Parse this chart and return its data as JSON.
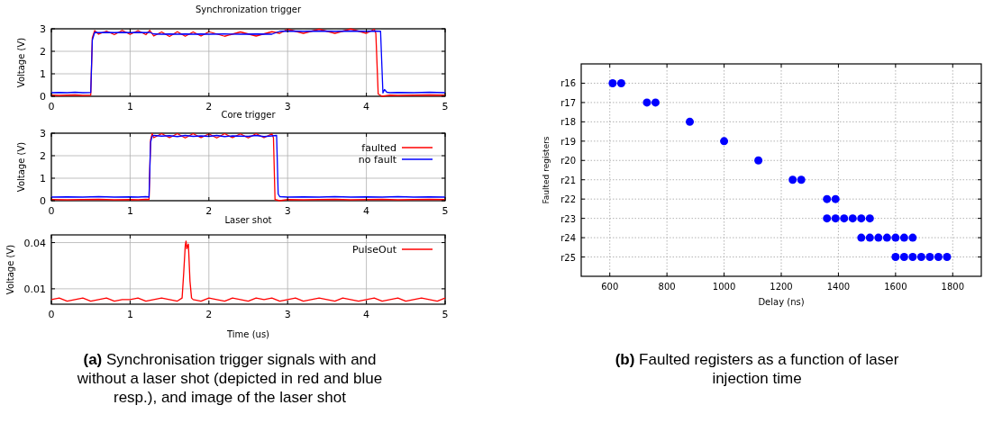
{
  "chart_data": [
    {
      "type": "line",
      "title": "Synchronization trigger",
      "ylabel": "Voltage (V)",
      "xlim": [
        0,
        5
      ],
      "xticks": [
        0,
        1,
        2,
        3,
        4,
        5
      ],
      "ylim": [
        0,
        3
      ],
      "yticks": [
        0,
        1,
        2,
        3
      ],
      "grid": true,
      "series": [
        {
          "color": "#ff0000",
          "x": [
            0,
            0.1,
            0.2,
            0.3,
            0.4,
            0.5,
            0.52,
            0.55,
            0.6,
            0.7,
            0.8,
            0.9,
            1.0,
            1.1,
            1.2,
            1.25,
            1.3,
            1.4,
            1.5,
            1.6,
            1.7,
            1.8,
            1.9,
            2.0,
            2.2,
            2.4,
            2.6,
            2.8,
            2.9,
            3.0,
            3.2,
            3.4,
            3.6,
            3.8,
            4.0,
            4.1,
            4.12,
            4.15,
            4.2,
            4.3,
            4.4,
            4.6,
            4.8,
            5.0
          ],
          "values": [
            0.05,
            0.04,
            0.05,
            0.06,
            0.04,
            0.05,
            2.6,
            2.92,
            2.76,
            2.9,
            2.74,
            2.93,
            2.75,
            2.92,
            2.74,
            2.93,
            2.68,
            2.86,
            2.66,
            2.87,
            2.67,
            2.86,
            2.68,
            2.87,
            2.67,
            2.86,
            2.68,
            2.87,
            2.8,
            2.98,
            2.8,
            2.98,
            2.8,
            2.99,
            2.8,
            2.98,
            2.8,
            0.1,
            0.0,
            0.05,
            0.04,
            0.05,
            0.06,
            0.05
          ]
        },
        {
          "color": "#0000ff",
          "x": [
            0,
            0.1,
            0.2,
            0.3,
            0.4,
            0.5,
            0.52,
            0.55,
            0.6,
            0.7,
            0.8,
            0.9,
            1.0,
            1.1,
            1.2,
            1.25,
            1.3,
            1.4,
            1.5,
            1.6,
            1.7,
            1.8,
            1.9,
            2.0,
            2.2,
            2.4,
            2.6,
            2.8,
            2.9,
            3.0,
            3.2,
            3.4,
            3.6,
            3.8,
            4.0,
            4.1,
            4.18,
            4.21,
            4.23,
            4.26,
            4.3,
            4.4,
            4.6,
            4.8,
            5.0
          ],
          "values": [
            0.16,
            0.17,
            0.16,
            0.18,
            0.16,
            0.17,
            2.5,
            2.84,
            2.83,
            2.84,
            2.83,
            2.84,
            2.83,
            2.84,
            2.83,
            2.84,
            2.77,
            2.76,
            2.77,
            2.76,
            2.77,
            2.76,
            2.77,
            2.76,
            2.77,
            2.76,
            2.77,
            2.76,
            2.89,
            2.9,
            2.89,
            2.9,
            2.89,
            2.9,
            2.89,
            2.9,
            2.89,
            0.15,
            0.3,
            0.18,
            0.16,
            0.17,
            0.16,
            0.18,
            0.16
          ]
        }
      ]
    },
    {
      "type": "line",
      "title": "Core trigger",
      "ylabel": "Voltage (V)",
      "xlim": [
        0,
        5
      ],
      "xticks": [
        0,
        1,
        2,
        3,
        4,
        5
      ],
      "ylim": [
        0,
        3
      ],
      "yticks": [
        0,
        1,
        2,
        3
      ],
      "grid": true,
      "legend": "top right",
      "series": [
        {
          "name": "faulted",
          "color": "#ff0000",
          "x": [
            0,
            0.2,
            0.4,
            0.6,
            0.8,
            1.0,
            1.1,
            1.2,
            1.24,
            1.26,
            1.28,
            1.3,
            1.4,
            1.5,
            1.6,
            1.7,
            1.8,
            1.9,
            2.0,
            2.1,
            2.2,
            2.3,
            2.4,
            2.5,
            2.6,
            2.7,
            2.8,
            2.82,
            2.84,
            2.9,
            3.0,
            3.2,
            3.4,
            3.6,
            3.8,
            4.0,
            4.2,
            4.4,
            4.6,
            4.8,
            5.0
          ],
          "values": [
            0.05,
            0.04,
            0.05,
            0.06,
            0.04,
            0.05,
            0.04,
            0.06,
            0.05,
            2.7,
            2.98,
            2.8,
            2.98,
            2.8,
            2.98,
            2.79,
            2.98,
            2.8,
            2.97,
            2.79,
            2.98,
            2.8,
            2.97,
            2.79,
            2.98,
            2.8,
            2.97,
            2.8,
            0.05,
            0.0,
            0.05,
            0.04,
            0.05,
            0.06,
            0.04,
            0.05,
            0.06,
            0.04,
            0.05,
            0.06,
            0.05
          ]
        },
        {
          "name": "no fault",
          "color": "#0000ff",
          "x": [
            0,
            0.2,
            0.4,
            0.6,
            0.8,
            1.0,
            1.1,
            1.2,
            1.24,
            1.26,
            1.28,
            1.3,
            1.4,
            1.5,
            1.6,
            1.7,
            1.8,
            1.9,
            2.0,
            2.1,
            2.2,
            2.3,
            2.4,
            2.5,
            2.6,
            2.7,
            2.8,
            2.86,
            2.88,
            2.9,
            3.0,
            3.2,
            3.4,
            3.6,
            3.8,
            4.0,
            4.2,
            4.4,
            4.6,
            4.8,
            5.0
          ],
          "values": [
            0.16,
            0.17,
            0.16,
            0.18,
            0.16,
            0.17,
            0.16,
            0.18,
            0.16,
            2.6,
            2.88,
            2.9,
            2.87,
            2.89,
            2.85,
            2.9,
            2.86,
            2.88,
            2.86,
            2.9,
            2.85,
            2.88,
            2.87,
            2.86,
            2.9,
            2.85,
            2.88,
            2.9,
            0.3,
            0.18,
            0.16,
            0.17,
            0.16,
            0.18,
            0.16,
            0.17,
            0.16,
            0.18,
            0.16,
            0.17,
            0.16
          ]
        }
      ]
    },
    {
      "type": "line",
      "title": "Laser shot",
      "xlabel": "Time (us)",
      "ylabel": "Voltage (V)",
      "xlim": [
        0,
        5
      ],
      "xticks": [
        0,
        1,
        2,
        3,
        4,
        5
      ],
      "ylim": [
        0,
        0.045
      ],
      "yticks": [
        0.01,
        0.04
      ],
      "grid": true,
      "legend": "top right",
      "annotations": [
        "(a) Synchronisation trigger signals with and without a laser shot (depicted in red and blue resp.), and image of the laser shot"
      ],
      "series": [
        {
          "name": "PulseOut",
          "color": "#ff0000",
          "x": [
            0,
            0.1,
            0.2,
            0.3,
            0.4,
            0.5,
            0.6,
            0.7,
            0.8,
            0.9,
            1.0,
            1.1,
            1.2,
            1.3,
            1.4,
            1.5,
            1.6,
            1.66,
            1.68,
            1.7,
            1.71,
            1.72,
            1.73,
            1.74,
            1.76,
            1.78,
            1.8,
            1.9,
            2.0,
            2.1,
            2.2,
            2.3,
            2.4,
            2.5,
            2.6,
            2.7,
            2.8,
            2.9,
            3.0,
            3.1,
            3.2,
            3.3,
            3.4,
            3.5,
            3.6,
            3.7,
            3.8,
            3.9,
            4.0,
            4.1,
            4.2,
            4.3,
            4.4,
            4.5,
            4.6,
            4.7,
            4.8,
            4.9,
            5.0
          ],
          "values": [
            0.003,
            0.004,
            0.002,
            0.003,
            0.004,
            0.002,
            0.003,
            0.004,
            0.002,
            0.003,
            0.003,
            0.004,
            0.002,
            0.003,
            0.004,
            0.003,
            0.002,
            0.004,
            0.02,
            0.038,
            0.041,
            0.036,
            0.038,
            0.039,
            0.015,
            0.004,
            0.003,
            0.002,
            0.004,
            0.003,
            0.002,
            0.004,
            0.003,
            0.002,
            0.004,
            0.003,
            0.004,
            0.002,
            0.003,
            0.004,
            0.002,
            0.003,
            0.004,
            0.003,
            0.002,
            0.004,
            0.003,
            0.002,
            0.003,
            0.004,
            0.002,
            0.003,
            0.004,
            0.002,
            0.003,
            0.004,
            0.003,
            0.002,
            0.004
          ]
        }
      ]
    },
    {
      "type": "scatter",
      "orientation": "horizontal",
      "xlabel": "Delay (ns)",
      "ylabel": "Faulted registers",
      "categories": [
        "r16",
        "r17",
        "r18",
        "r19",
        "r20",
        "r21",
        "r22",
        "r23",
        "r24",
        "r25"
      ],
      "xlim": [
        500,
        1900
      ],
      "xticks": [
        600,
        800,
        1000,
        1200,
        1400,
        1600,
        1800
      ],
      "grid": true,
      "marker": "circle",
      "annotations": [
        "(b) Faulted registers as a function of laser injection time"
      ],
      "series": [
        {
          "color": "#0000ff",
          "x": [
            "r16",
            "r16",
            "r17",
            "r17",
            "r18",
            "r19",
            "r20",
            "r21",
            "r21",
            "r22",
            "r22",
            "r23",
            "r23",
            "r23",
            "r23",
            "r23",
            "r23",
            "r24",
            "r24",
            "r24",
            "r24",
            "r24",
            "r24",
            "r24",
            "r25",
            "r25",
            "r25",
            "r25",
            "r25",
            "r25",
            "r25"
          ],
          "values": [
            610,
            640,
            730,
            760,
            880,
            1000,
            1120,
            1240,
            1270,
            1360,
            1390,
            1360,
            1390,
            1420,
            1450,
            1480,
            1510,
            1480,
            1510,
            1540,
            1570,
            1600,
            1630,
            1660,
            1600,
            1630,
            1660,
            1690,
            1720,
            1750,
            1780
          ]
        }
      ]
    }
  ]
}
